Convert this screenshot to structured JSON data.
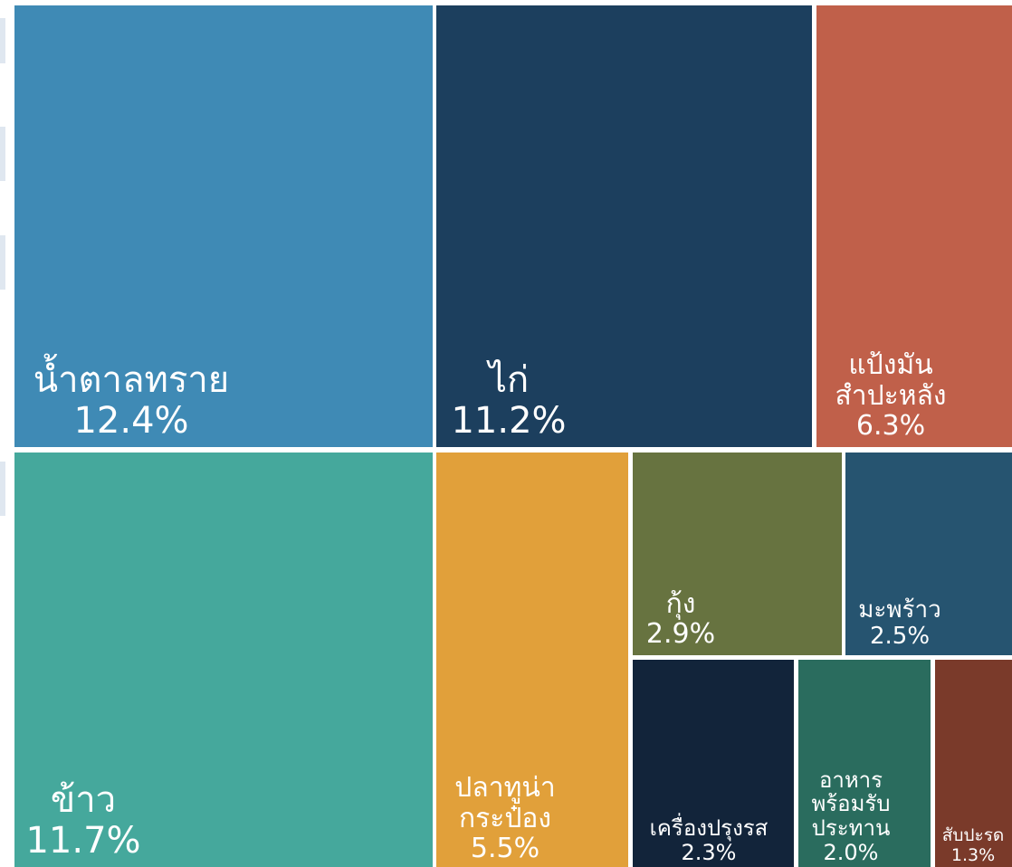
{
  "chart_data": {
    "type": "treemap",
    "categories": [
      "น้ำตาลทราย",
      "ไก่",
      "แป้งมัน\nสำปะหลัง",
      "ข้าว",
      "ปลาทูน่า\nกระป๋อง",
      "กุ้ง",
      "มะพร้าว",
      "เครื่องปรุงรส",
      "อาหาร\nพร้อมรับ\nประทาน",
      "สับปะรด"
    ],
    "values": [
      12.4,
      11.2,
      6.3,
      11.7,
      5.5,
      2.9,
      2.5,
      2.3,
      2.0,
      1.3
    ],
    "value_labels": [
      "12.4%",
      "11.2%",
      "6.3%",
      "11.7%",
      "5.5%",
      "2.9%",
      "2.5%",
      "2.3%",
      "2.0%",
      "1.3%"
    ],
    "colors": [
      "#3f8ab5",
      "#1c3f5e",
      "#c0604a",
      "#45a89c",
      "#e1a03a",
      "#677340",
      "#265470",
      "#12243a",
      "#2a6c5e",
      "#7a3a2a"
    ]
  }
}
